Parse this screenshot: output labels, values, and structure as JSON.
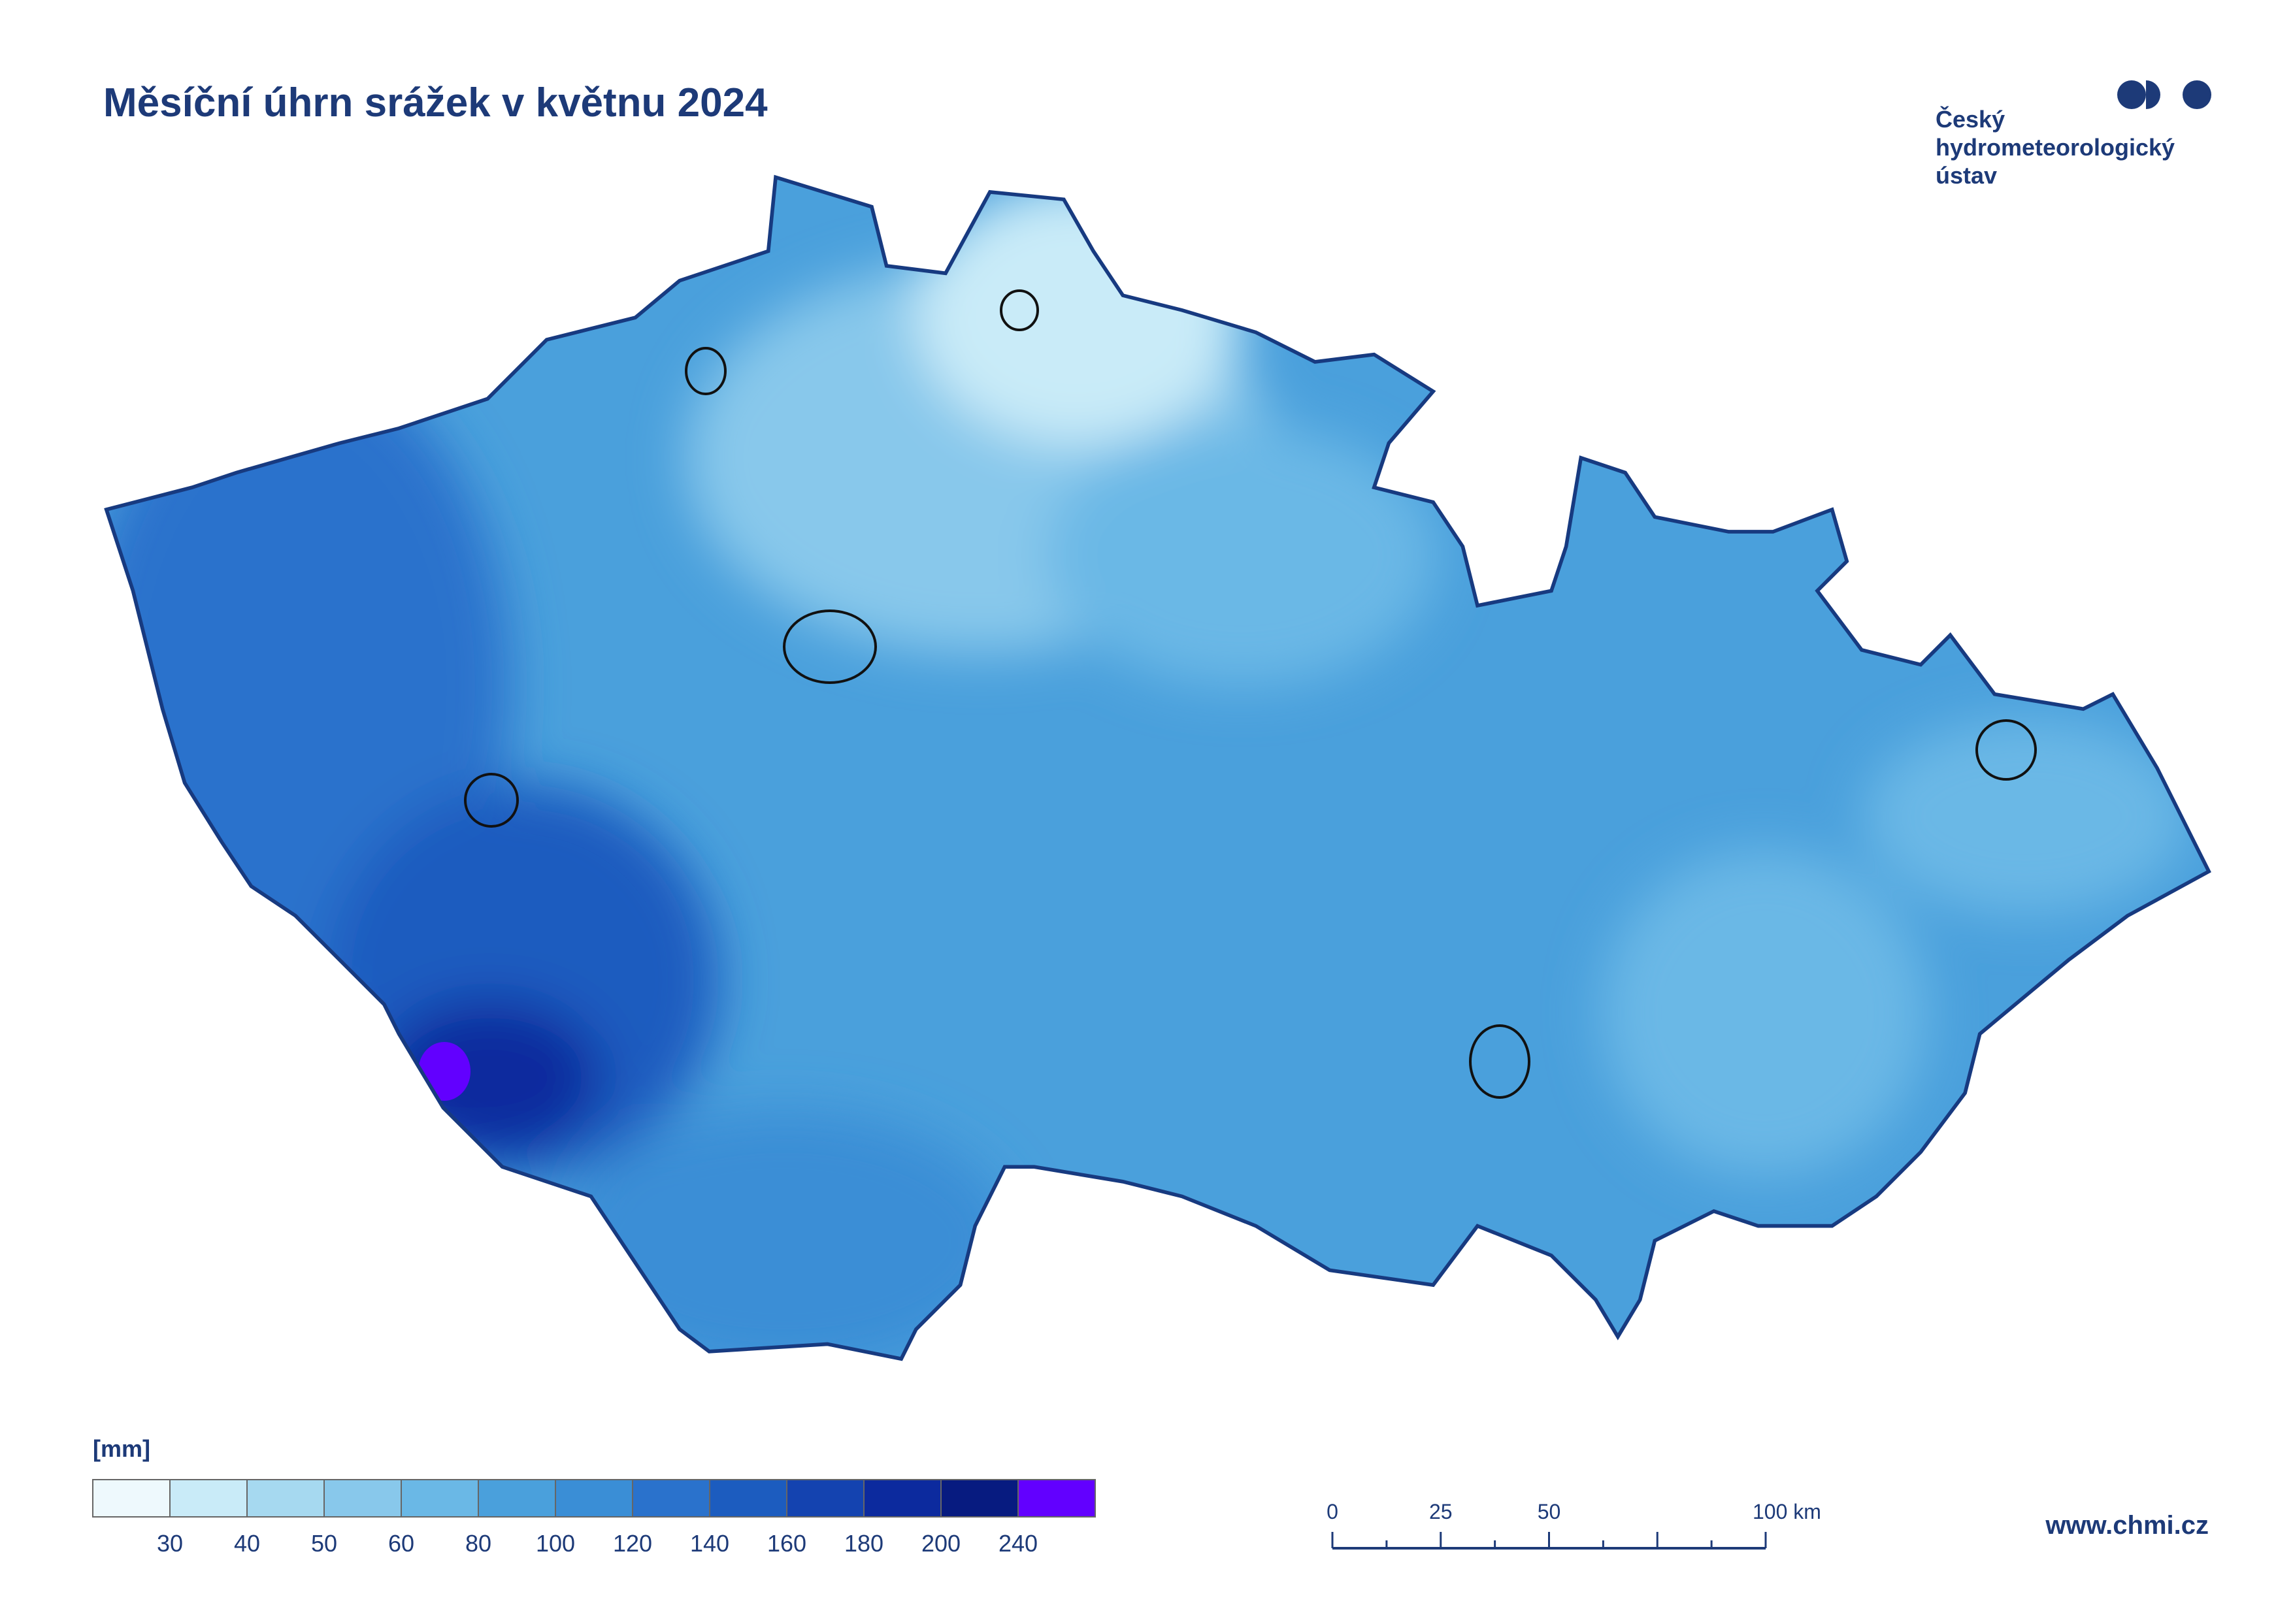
{
  "title": "Měsíční úhrn srážek v květnu 2024",
  "logo": {
    "lines": [
      "Český",
      "hydrometeorologický",
      "ústav"
    ]
  },
  "legend": {
    "unit": "[mm]",
    "colors": [
      "#eef9fd",
      "#c9ebf8",
      "#a6d9f0",
      "#88c8eb",
      "#6ab8e6",
      "#4aa0dc",
      "#3a8ed6",
      "#2a72cc",
      "#1c5cbf",
      "#1443b0",
      "#0c2a9e",
      "#071b80",
      "#6200ff"
    ],
    "labels": [
      30,
      40,
      50,
      60,
      80,
      100,
      120,
      140,
      160,
      180,
      200,
      240
    ]
  },
  "scale_bar": {
    "labels": [
      "0",
      "25",
      "50",
      "100 km"
    ]
  },
  "url": "www.chmi.cz"
}
